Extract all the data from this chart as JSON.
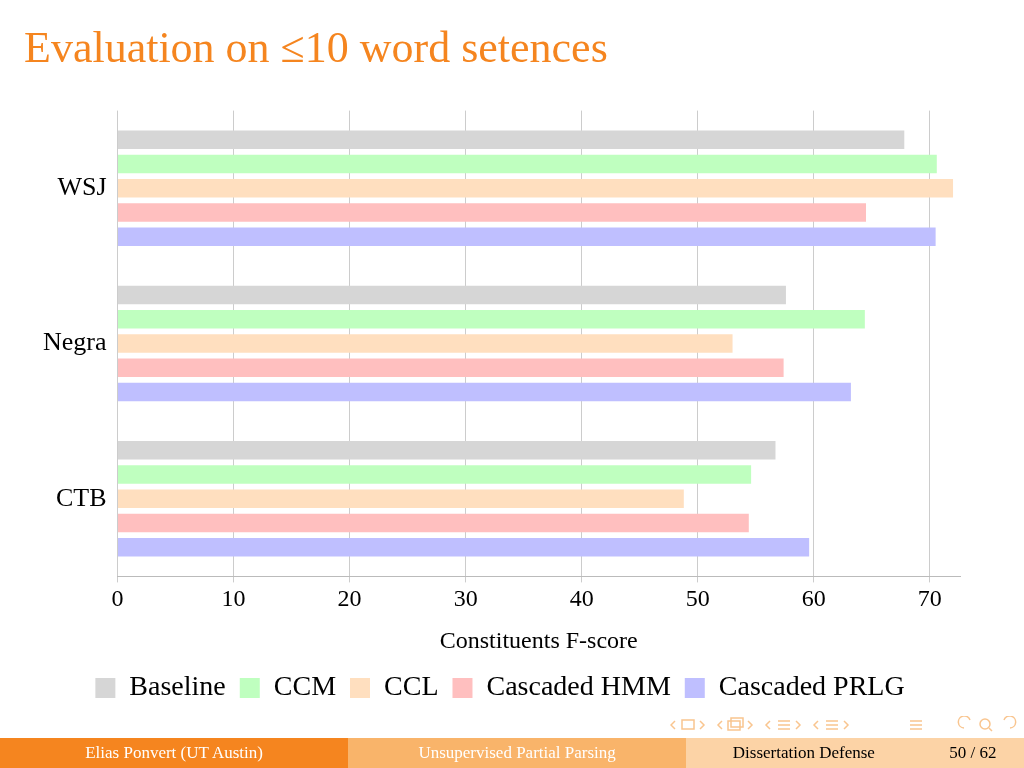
{
  "chart_data": {
    "type": "bar",
    "orientation": "horizontal",
    "title": "Evaluation on ≤10 word setences",
    "xlabel": "Constituents F-score",
    "categories": [
      "WSJ",
      "Negra",
      "CTB"
    ],
    "series": [
      {
        "name": "Baseline",
        "color": "#d6d6d6",
        "values": [
          67.8,
          57.6,
          56.7
        ]
      },
      {
        "name": "CCM",
        "color": "#bfffbf",
        "values": [
          70.6,
          64.4,
          54.6
        ]
      },
      {
        "name": "CCL",
        "color": "#ffdfbf",
        "values": [
          72.0,
          53.0,
          48.8
        ]
      },
      {
        "name": "Cascaded HMM",
        "color": "#ffbfbf",
        "values": [
          64.5,
          57.4,
          54.4
        ]
      },
      {
        "name": "Cascaded PRLG",
        "color": "#bfbfff",
        "values": [
          70.5,
          63.2,
          59.6
        ]
      }
    ],
    "xlim": [
      0,
      72.6
    ],
    "xticks": [
      0,
      10,
      20,
      30,
      40,
      50,
      60,
      70
    ],
    "grid": "x",
    "legend": "bottom",
    "annotations": [
      "Elias Ponvert (UT Austin)",
      "Unsupervised Partial Parsing",
      "Dissertation Defense",
      "50 / 62"
    ]
  }
}
